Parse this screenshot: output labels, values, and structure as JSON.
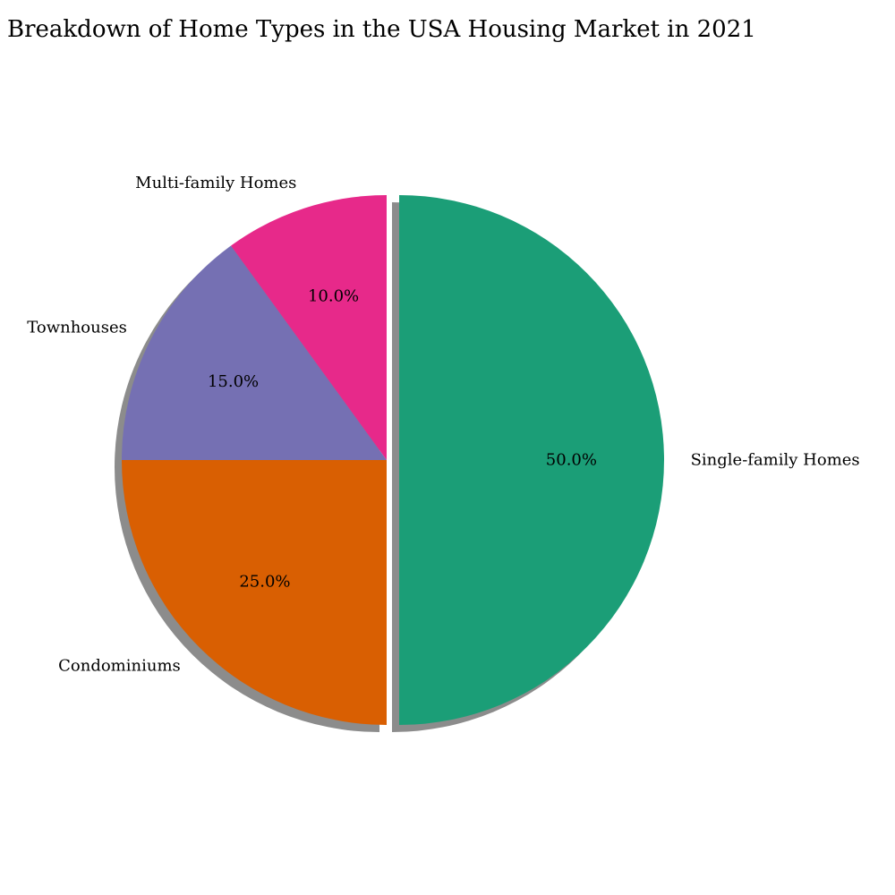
{
  "chart_data": {
    "type": "pie",
    "title": "Breakdown of Home Types in the USA Housing Market in 2021",
    "categories": [
      "Single-family Homes",
      "Condominiums",
      "Townhouses",
      "Multi-family Homes"
    ],
    "values": [
      50,
      25,
      15,
      10
    ],
    "percent_labels": [
      "50.0%",
      "25.0%",
      "15.0%",
      "10.0%"
    ],
    "colors": [
      "#1b9e77",
      "#d95f02",
      "#7570b3",
      "#e7298a"
    ],
    "exploded": [
      "Single-family Homes"
    ],
    "start_angle_deg": 90,
    "shadow": true,
    "legend": "none"
  }
}
